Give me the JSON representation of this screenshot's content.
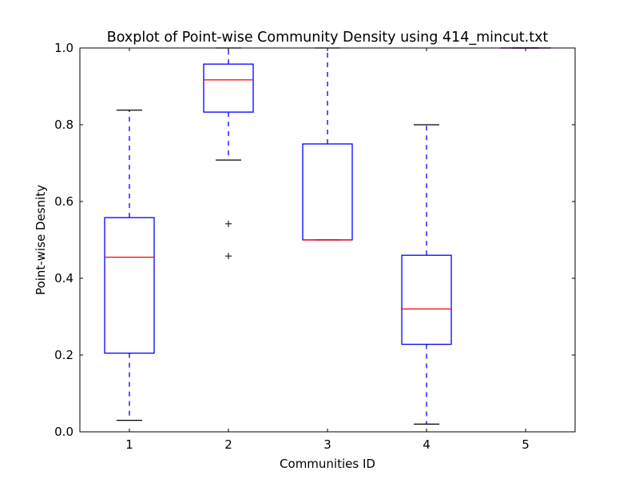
{
  "chart_data": {
    "type": "boxplot",
    "title": "Boxplot of Point-wise Community Density using 414_mincut.txt",
    "xlabel": "Communities ID",
    "ylabel": "Point-wise Desnity",
    "ylim": [
      0.0,
      1.0
    ],
    "yticks": [
      "0.0",
      "0.2",
      "0.4",
      "0.6",
      "0.8",
      "1.0"
    ],
    "categories": [
      "1",
      "2",
      "3",
      "4",
      "5"
    ],
    "grid": false,
    "boxes": [
      {
        "id": "1",
        "whisker_low": 0.03,
        "q1": 0.205,
        "median": 0.455,
        "q3": 0.558,
        "whisker_high": 0.838,
        "outliers": []
      },
      {
        "id": "2",
        "whisker_low": 0.708,
        "q1": 0.833,
        "median": 0.917,
        "q3": 0.958,
        "whisker_high": 1.0,
        "outliers": [
          0.542,
          0.458
        ]
      },
      {
        "id": "3",
        "whisker_low": 0.5,
        "q1": 0.5,
        "median": 0.5,
        "q3": 0.75,
        "whisker_high": 1.0,
        "outliers": []
      },
      {
        "id": "4",
        "whisker_low": 0.02,
        "q1": 0.228,
        "median": 0.32,
        "q3": 0.46,
        "whisker_high": 0.8,
        "outliers": []
      },
      {
        "id": "5",
        "whisker_low": 1.0,
        "q1": 1.0,
        "median": 1.0,
        "q3": 1.0,
        "whisker_high": 1.0,
        "outliers": []
      }
    ],
    "colors": {
      "box": "#0000ff",
      "whisker": "#0000ff",
      "cap": "#000000",
      "median": "#ff0000",
      "outlier": "#000000"
    }
  }
}
